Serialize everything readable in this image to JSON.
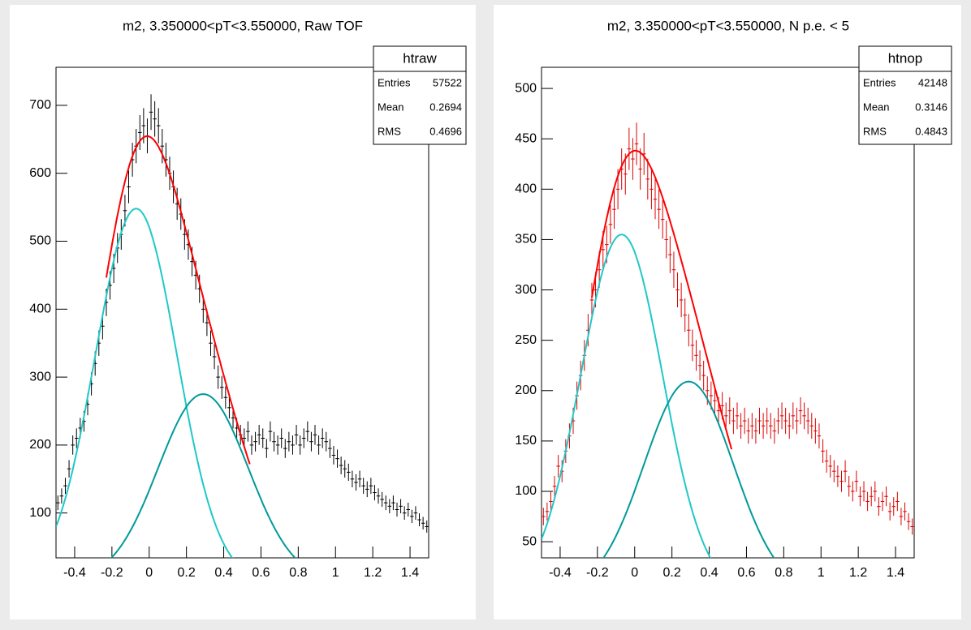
{
  "chart_data": [
    {
      "type": "histogram",
      "title": "m2, 3.350000<pT<3.550000, Raw TOF",
      "color": "#000000",
      "xlim": [
        -0.5,
        1.5
      ],
      "xticks": [
        -0.4,
        -0.2,
        0,
        0.2,
        0.4,
        0.6,
        0.8,
        1,
        1.2,
        1.4
      ],
      "ylim": [
        34,
        756
      ],
      "yticks": [
        100,
        200,
        300,
        400,
        500,
        600,
        700
      ],
      "x": [
        -0.49,
        -0.47,
        -0.45,
        -0.43,
        -0.41,
        -0.39,
        -0.37,
        -0.35,
        -0.33,
        -0.31,
        -0.29,
        -0.27,
        -0.25,
        -0.23,
        -0.21,
        -0.19,
        -0.17,
        -0.15,
        -0.13,
        -0.11,
        -0.09,
        -0.07,
        -0.05,
        -0.03,
        -0.01,
        0.01,
        0.03,
        0.05,
        0.07,
        0.09,
        0.11,
        0.13,
        0.15,
        0.17,
        0.19,
        0.21,
        0.23,
        0.25,
        0.27,
        0.29,
        0.31,
        0.33,
        0.35,
        0.37,
        0.39,
        0.41,
        0.43,
        0.45,
        0.47,
        0.49,
        0.51,
        0.53,
        0.55,
        0.57,
        0.59,
        0.61,
        0.63,
        0.65,
        0.67,
        0.69,
        0.71,
        0.73,
        0.75,
        0.77,
        0.79,
        0.81,
        0.83,
        0.85,
        0.87,
        0.89,
        0.91,
        0.93,
        0.95,
        0.97,
        0.99,
        1.01,
        1.03,
        1.05,
        1.07,
        1.09,
        1.11,
        1.13,
        1.15,
        1.17,
        1.19,
        1.21,
        1.23,
        1.25,
        1.27,
        1.29,
        1.31,
        1.33,
        1.35,
        1.37,
        1.39,
        1.41,
        1.43,
        1.45,
        1.47,
        1.49
      ],
      "values": [
        115,
        125,
        140,
        165,
        200,
        210,
        225,
        235,
        260,
        290,
        320,
        350,
        375,
        410,
        435,
        460,
        490,
        510,
        545,
        580,
        620,
        640,
        660,
        670,
        655,
        690,
        680,
        670,
        640,
        620,
        600,
        580,
        555,
        540,
        510,
        495,
        470,
        450,
        430,
        400,
        380,
        350,
        330,
        300,
        285,
        270,
        255,
        240,
        225,
        215,
        210,
        220,
        200,
        205,
        215,
        210,
        195,
        220,
        205,
        200,
        210,
        195,
        205,
        200,
        215,
        200,
        210,
        220,
        205,
        215,
        200,
        210,
        205,
        195,
        185,
        180,
        170,
        165,
        160,
        150,
        145,
        150,
        140,
        135,
        140,
        130,
        125,
        120,
        115,
        110,
        115,
        105,
        110,
        100,
        105,
        95,
        100,
        90,
        85,
        80
      ],
      "fits": [
        {
          "color": "#20c8c8",
          "amplitude": 548,
          "mean": -0.07,
          "sigma": 0.219
        },
        {
          "color": "#009a9a",
          "amplitude": 275,
          "mean": 0.29,
          "sigma": 0.241
        },
        {
          "color": "#ff0000",
          "components": [
            0,
            1
          ],
          "xrange": [
            -0.23,
            0.54
          ]
        }
      ],
      "stats": {
        "name": "htraw",
        "rows": [
          {
            "label": "Entries",
            "value": 57522
          },
          {
            "label": "Mean",
            "value": 0.2694
          },
          {
            "label": "RMS",
            "value": 0.4696
          }
        ]
      }
    },
    {
      "type": "histogram",
      "title": "m2, 3.350000<pT<3.550000, N p.e. < 5",
      "color": "#dd0000",
      "xlim": [
        -0.5,
        1.5
      ],
      "xticks": [
        -0.4,
        -0.2,
        0,
        0.2,
        0.4,
        0.6,
        0.8,
        1,
        1.2,
        1.4
      ],
      "ylim": [
        34,
        521
      ],
      "yticks": [
        50,
        100,
        150,
        200,
        250,
        300,
        350,
        400,
        450,
        500
      ],
      "x": [
        -0.49,
        -0.47,
        -0.45,
        -0.43,
        -0.41,
        -0.39,
        -0.37,
        -0.35,
        -0.33,
        -0.31,
        -0.29,
        -0.27,
        -0.25,
        -0.23,
        -0.21,
        -0.19,
        -0.17,
        -0.15,
        -0.13,
        -0.11,
        -0.09,
        -0.07,
        -0.05,
        -0.03,
        -0.01,
        0.01,
        0.03,
        0.05,
        0.07,
        0.09,
        0.11,
        0.13,
        0.15,
        0.17,
        0.19,
        0.21,
        0.23,
        0.25,
        0.27,
        0.29,
        0.31,
        0.33,
        0.35,
        0.37,
        0.39,
        0.41,
        0.43,
        0.45,
        0.47,
        0.49,
        0.51,
        0.53,
        0.55,
        0.57,
        0.59,
        0.61,
        0.63,
        0.65,
        0.67,
        0.69,
        0.71,
        0.73,
        0.75,
        0.77,
        0.79,
        0.81,
        0.83,
        0.85,
        0.87,
        0.89,
        0.91,
        0.93,
        0.95,
        0.97,
        0.99,
        1.01,
        1.03,
        1.05,
        1.07,
        1.09,
        1.11,
        1.13,
        1.15,
        1.17,
        1.19,
        1.21,
        1.23,
        1.25,
        1.27,
        1.29,
        1.31,
        1.33,
        1.35,
        1.37,
        1.39,
        1.41,
        1.43,
        1.45,
        1.47,
        1.49
      ],
      "values": [
        75,
        80,
        90,
        105,
        125,
        120,
        140,
        155,
        170,
        195,
        215,
        235,
        260,
        290,
        300,
        320,
        340,
        345,
        365,
        380,
        400,
        420,
        415,
        440,
        430,
        445,
        420,
        435,
        410,
        400,
        390,
        380,
        370,
        350,
        335,
        320,
        300,
        290,
        275,
        260,
        245,
        235,
        225,
        215,
        200,
        195,
        190,
        180,
        185,
        175,
        180,
        170,
        175,
        165,
        170,
        160,
        165,
        160,
        170,
        165,
        170,
        165,
        160,
        170,
        175,
        170,
        165,
        175,
        170,
        180,
        175,
        170,
        165,
        160,
        155,
        140,
        130,
        125,
        120,
        115,
        110,
        120,
        105,
        100,
        110,
        95,
        100,
        90,
        95,
        100,
        85,
        90,
        95,
        80,
        85,
        90,
        75,
        80,
        70,
        65
      ],
      "fits": [
        {
          "color": "#20c8c8",
          "amplitude": 355,
          "mean": -0.07,
          "sigma": 0.22
        },
        {
          "color": "#009a9a",
          "amplitude": 209,
          "mean": 0.29,
          "sigma": 0.24
        },
        {
          "color": "#ff0000",
          "components": [
            0,
            1
          ],
          "xrange": [
            -0.23,
            0.52
          ]
        }
      ],
      "stats": {
        "name": "htnop",
        "rows": [
          {
            "label": "Entries",
            "value": 42148
          },
          {
            "label": "Mean",
            "value": 0.3146
          },
          {
            "label": "RMS",
            "value": 0.4843
          }
        ]
      }
    }
  ]
}
